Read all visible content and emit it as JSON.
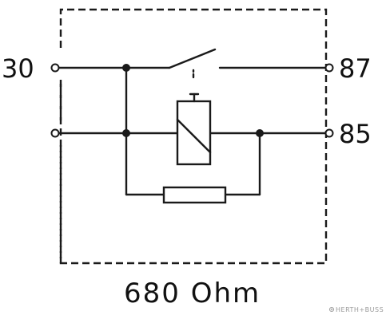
{
  "pins": {
    "top_left": "30",
    "top_right": "87",
    "bottom_right": "85"
  },
  "resistor_value": "680 Ohm",
  "watermark": "HERTH+BUSS",
  "colors": {
    "ink": "#1a1a1a",
    "background": "#ffffff",
    "watermark": "#9a9a9a"
  },
  "icons": {
    "watermark_logo": "brand-mark-icon"
  }
}
